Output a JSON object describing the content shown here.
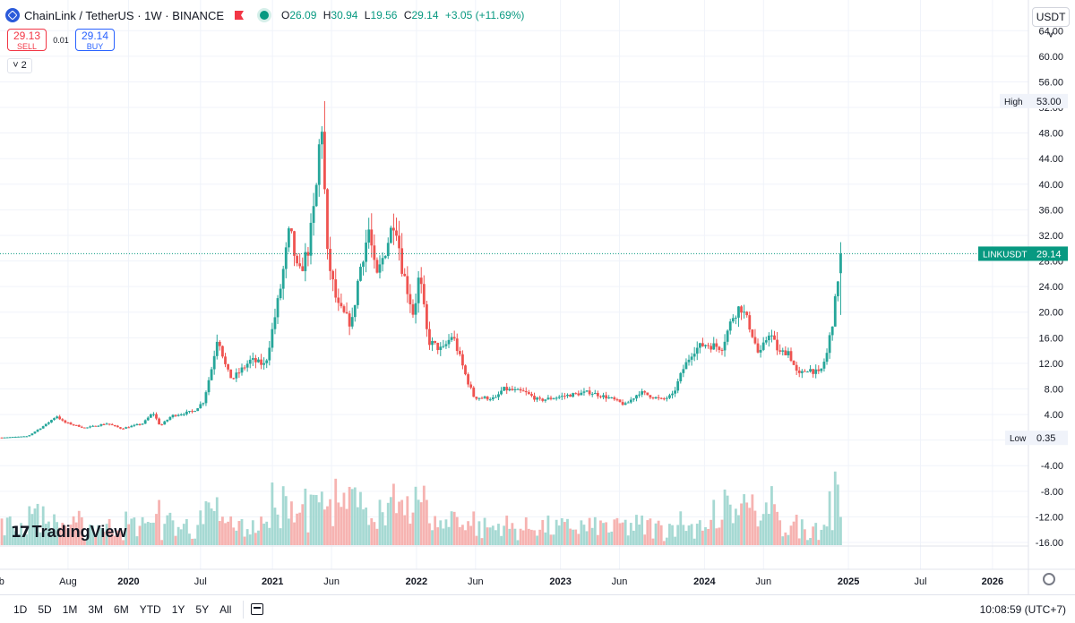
{
  "header": {
    "symbol_title": "ChainLink / TetherUS · 1W · BINANCE",
    "ohlc": [
      {
        "k": "O",
        "v": "26.09"
      },
      {
        "k": "H",
        "v": "30.94"
      },
      {
        "k": "L",
        "v": "19.56"
      },
      {
        "k": "C",
        "v": "29.14"
      }
    ],
    "change": "+3.05 (+11.69%)"
  },
  "trade": {
    "sell_price": "29.13",
    "sell_label": "SELL",
    "spread": "0.01",
    "buy_price": "29.14",
    "buy_label": "BUY"
  },
  "indicator_collapse": "2",
  "currency": "USDT",
  "logo_text": "TradingView",
  "toolbar": {
    "ranges": [
      "1D",
      "5D",
      "1M",
      "3M",
      "6M",
      "YTD",
      "1Y",
      "5Y",
      "All"
    ],
    "clock": "10:08:59 (UTC+7)"
  },
  "colors": {
    "up": "#26a69a",
    "down": "#ef5350",
    "vol_up": "#a6d9d3",
    "vol_down": "#f6b3b1",
    "price_line": "#089981"
  },
  "chart_data": {
    "type": "candlestick",
    "title": "ChainLink / TetherUS · 1W · BINANCE",
    "ylim": [
      -16,
      66
    ],
    "y_ticks": [
      64,
      60,
      56,
      52,
      48,
      44,
      40,
      36,
      32,
      28,
      24,
      20,
      16,
      12,
      8,
      4,
      0,
      -4,
      -8,
      -12,
      -16
    ],
    "y_tick_labels": [
      "64.00",
      "60.00",
      "56.00",
      "52.00",
      "48.00",
      "44.00",
      "40.00",
      "36.00",
      "32.00",
      "28.00",
      "24.00",
      "20.00",
      "16.00",
      "12.00",
      "8.00",
      "4.00",
      "",
      "-4.00",
      "-8.00",
      "-12.00",
      "-16.00"
    ],
    "x_ticks": [
      {
        "label": "eb",
        "t": 2019.1
      },
      {
        "label": "Aug",
        "t": 2019.58
      },
      {
        "label": "2020",
        "t": 2020.0
      },
      {
        "label": "Jul",
        "t": 2020.5
      },
      {
        "label": "2021",
        "t": 2021.0
      },
      {
        "label": "Jun",
        "t": 2021.41
      },
      {
        "label": "2022",
        "t": 2022.0
      },
      {
        "label": "Jun",
        "t": 2022.41
      },
      {
        "label": "2023",
        "t": 2023.0
      },
      {
        "label": "Jun",
        "t": 2023.41
      },
      {
        "label": "2024",
        "t": 2024.0
      },
      {
        "label": "Jun",
        "t": 2024.41
      },
      {
        "label": "2025",
        "t": 2025.0
      },
      {
        "label": "Jul",
        "t": 2025.5
      },
      {
        "label": "2026",
        "t": 2026.0
      }
    ],
    "x_range": [
      2019.12,
      2026.2
    ],
    "series": [
      {
        "name": "LINKUSDT",
        "close_path": [
          {
            "t": 2019.12,
            "c": 0.4
          },
          {
            "t": 2019.3,
            "c": 0.6
          },
          {
            "t": 2019.43,
            "c": 2.5
          },
          {
            "t": 2019.5,
            "c": 3.8
          },
          {
            "t": 2019.55,
            "c": 2.8
          },
          {
            "t": 2019.7,
            "c": 1.9
          },
          {
            "t": 2019.85,
            "c": 2.6
          },
          {
            "t": 2019.95,
            "c": 1.8
          },
          {
            "t": 2020.1,
            "c": 2.6
          },
          {
            "t": 2020.17,
            "c": 4.3
          },
          {
            "t": 2020.22,
            "c": 2.2
          },
          {
            "t": 2020.3,
            "c": 3.8
          },
          {
            "t": 2020.45,
            "c": 4.5
          },
          {
            "t": 2020.52,
            "c": 6.0
          },
          {
            "t": 2020.58,
            "c": 11.5
          },
          {
            "t": 2020.62,
            "c": 16.5
          },
          {
            "t": 2020.68,
            "c": 11.0
          },
          {
            "t": 2020.72,
            "c": 9.5
          },
          {
            "t": 2020.85,
            "c": 12.5
          },
          {
            "t": 2020.95,
            "c": 11.7
          },
          {
            "t": 2021.05,
            "c": 23.0
          },
          {
            "t": 2021.12,
            "c": 33.0
          },
          {
            "t": 2021.18,
            "c": 25.5
          },
          {
            "t": 2021.25,
            "c": 30.0
          },
          {
            "t": 2021.3,
            "c": 38.0
          },
          {
            "t": 2021.34,
            "c": 51.0
          },
          {
            "t": 2021.38,
            "c": 29.0
          },
          {
            "t": 2021.45,
            "c": 21.0
          },
          {
            "t": 2021.55,
            "c": 18.0
          },
          {
            "t": 2021.6,
            "c": 26.0
          },
          {
            "t": 2021.67,
            "c": 33.0
          },
          {
            "t": 2021.72,
            "c": 25.0
          },
          {
            "t": 2021.8,
            "c": 31.0
          },
          {
            "t": 2021.85,
            "c": 35.0
          },
          {
            "t": 2021.9,
            "c": 27.0
          },
          {
            "t": 2021.98,
            "c": 19.5
          },
          {
            "t": 2022.02,
            "c": 26.0
          },
          {
            "t": 2022.08,
            "c": 15.5
          },
          {
            "t": 2022.18,
            "c": 14.0
          },
          {
            "t": 2022.25,
            "c": 16.5
          },
          {
            "t": 2022.35,
            "c": 9.5
          },
          {
            "t": 2022.4,
            "c": 6.7
          },
          {
            "t": 2022.55,
            "c": 6.5
          },
          {
            "t": 2022.6,
            "c": 8.0
          },
          {
            "t": 2022.75,
            "c": 7.5
          },
          {
            "t": 2022.85,
            "c": 6.2
          },
          {
            "t": 2023.05,
            "c": 7.0
          },
          {
            "t": 2023.2,
            "c": 7.5
          },
          {
            "t": 2023.35,
            "c": 6.5
          },
          {
            "t": 2023.45,
            "c": 5.5
          },
          {
            "t": 2023.55,
            "c": 7.5
          },
          {
            "t": 2023.7,
            "c": 6.3
          },
          {
            "t": 2023.78,
            "c": 7.0
          },
          {
            "t": 2023.85,
            "c": 11.0
          },
          {
            "t": 2023.92,
            "c": 14.0
          },
          {
            "t": 2024.0,
            "c": 15.0
          },
          {
            "t": 2024.12,
            "c": 14.5
          },
          {
            "t": 2024.2,
            "c": 19.5
          },
          {
            "t": 2024.25,
            "c": 21.0
          },
          {
            "t": 2024.32,
            "c": 17.5
          },
          {
            "t": 2024.38,
            "c": 13.0
          },
          {
            "t": 2024.45,
            "c": 17.0
          },
          {
            "t": 2024.52,
            "c": 13.5
          },
          {
            "t": 2024.58,
            "c": 14.0
          },
          {
            "t": 2024.65,
            "c": 10.0
          },
          {
            "t": 2024.72,
            "c": 11.2
          },
          {
            "t": 2024.8,
            "c": 10.3
          },
          {
            "t": 2024.85,
            "c": 13.5
          },
          {
            "t": 2024.88,
            "c": 17.5
          },
          {
            "t": 2024.9,
            "c": 20.0
          },
          {
            "t": 2024.93,
            "c": 26.09
          },
          {
            "t": 2024.95,
            "c": 29.14
          }
        ]
      }
    ],
    "high_marker": {
      "label": "High",
      "value": 53.0,
      "value_text": "53.00"
    },
    "low_marker": {
      "label": "Low",
      "value": 0.35,
      "value_text": "0.35"
    },
    "last_price": {
      "label": "LINKUSDT",
      "value": 29.14,
      "value_text": "29.14"
    },
    "grid": true
  }
}
